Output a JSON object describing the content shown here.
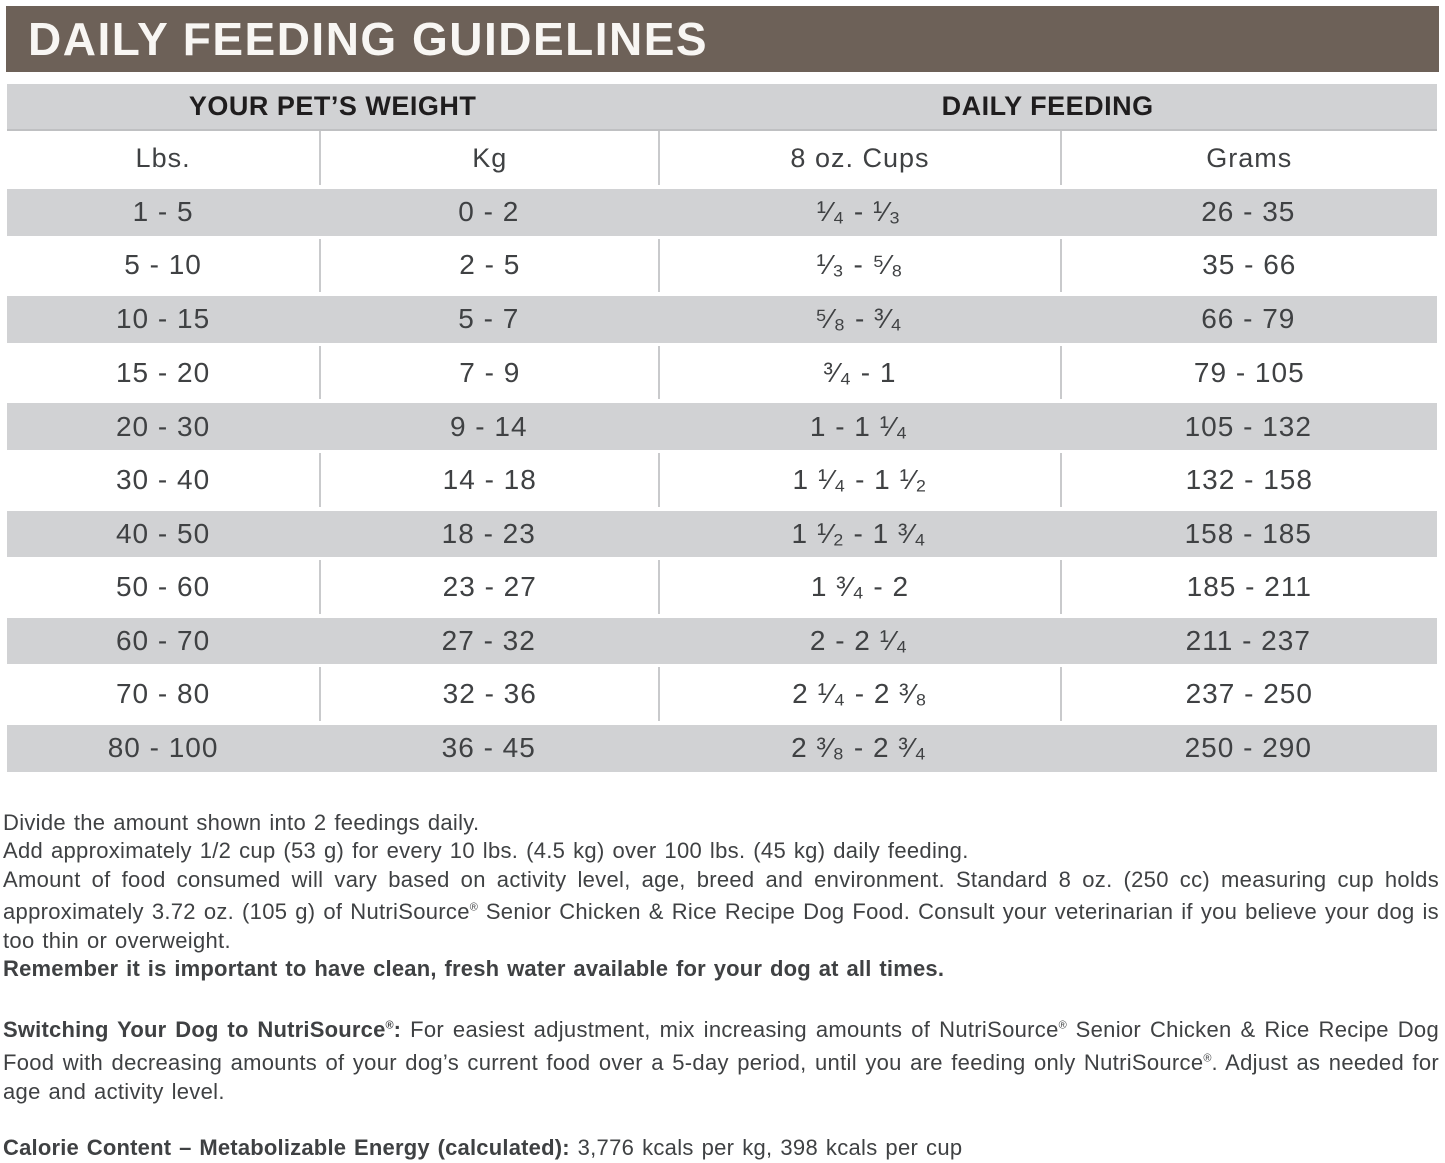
{
  "title": "DAILY FEEDING GUIDELINES",
  "colors": {
    "title_bar_bg": "#6d6158",
    "title_text": "#f8f6f3",
    "band_gray": "#d1d2d4",
    "divider": "#c9cacc",
    "heading_text": "#1f1d1e",
    "body_text": "#3f4143"
  },
  "table": {
    "section_headers": [
      "YOUR PET’S WEIGHT",
      "DAILY FEEDING"
    ],
    "columns": [
      "Lbs.",
      "Kg",
      "8 oz. Cups",
      "Grams"
    ],
    "rows": [
      [
        "1 - 5",
        "0 - 2",
        "¹⁄₄ - ¹⁄₃",
        "26 - 35"
      ],
      [
        "5 - 10",
        "2 - 5",
        "¹⁄₃ - ⁵⁄₈",
        "35 - 66"
      ],
      [
        "10 - 15",
        "5 - 7",
        "⁵⁄₈ - ³⁄₄",
        "66 - 79"
      ],
      [
        "15 - 20",
        "7 - 9",
        "³⁄₄ - 1",
        "79 - 105"
      ],
      [
        "20 - 30",
        "9 - 14",
        "1 - 1 ¹⁄₄",
        "105 - 132"
      ],
      [
        "30 - 40",
        "14 - 18",
        "1 ¹⁄₄ - 1 ¹⁄₂",
        "132 - 158"
      ],
      [
        "40 - 50",
        "18 - 23",
        "1 ¹⁄₂ - 1 ³⁄₄",
        "158 - 185"
      ],
      [
        "50 - 60",
        "23 - 27",
        "1 ³⁄₄ - 2",
        "185 - 211"
      ],
      [
        "60 - 70",
        "27 - 32",
        "2 - 2 ¹⁄₄",
        "211 - 237"
      ],
      [
        "70 - 80",
        "32 - 36",
        "2 ¹⁄₄ - 2 ³⁄₈",
        "237 - 250"
      ],
      [
        "80 - 100",
        "36 - 45",
        "2 ³⁄₈ - 2 ³⁄₄",
        "250 - 290"
      ]
    ]
  },
  "notes": {
    "paragraphs": [
      {
        "justify": false,
        "gap": false,
        "segments": [
          {
            "bold": false,
            "text": "Divide the amount shown into 2 feedings daily."
          }
        ]
      },
      {
        "justify": false,
        "gap": false,
        "segments": [
          {
            "bold": false,
            "text": "Add approximately 1/2 cup (53 g) for every 10 lbs. (4.5 kg) over 100 lbs. (45 kg) daily feeding."
          }
        ]
      },
      {
        "justify": true,
        "gap": false,
        "segments": [
          {
            "bold": false,
            "text": "Amount of food consumed will vary based on activity level, age, breed and environment. Standard 8 oz. (250 cc) measuring cup holds approximately 3.72 oz. (105 g) of NutriSource® Senior Chicken & Rice Recipe Dog Food. Consult your veterinarian if you believe your dog is too thin or overweight."
          }
        ]
      },
      {
        "justify": false,
        "gap": false,
        "segments": [
          {
            "bold": true,
            "text": "Remember it is important to have clean, fresh water available for your dog at all times."
          }
        ]
      },
      {
        "justify": true,
        "gap": true,
        "segments": [
          {
            "bold": true,
            "text": "Switching Your Dog to NutriSource®:"
          },
          {
            "bold": false,
            "text": " For easiest adjustment, mix increasing amounts of NutriSource® Senior Chicken & Rice Recipe Dog Food with decreasing amounts of your dog’s current food over a 5-day period, until you are feeding only NutriSource®. Adjust as needed for age and activity level."
          }
        ]
      },
      {
        "justify": false,
        "gap": true,
        "segments": [
          {
            "bold": true,
            "text": "Calorie Content – Metabolizable Energy (calculated): "
          },
          {
            "bold": false,
            "text": "3,776 kcals per kg, 398 kcals per cup"
          }
        ]
      }
    ]
  }
}
